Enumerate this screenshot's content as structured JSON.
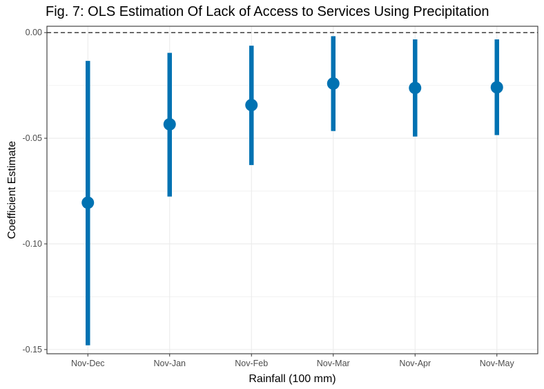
{
  "chart_data": {
    "type": "scatter",
    "title": "Fig. 7: OLS Estimation Of Lack of Access to Services Using Precipitation",
    "xlabel": "Rainfall (100 mm)",
    "ylabel": "Coefficient Estimate",
    "categories": [
      "Nov-Dec",
      "Nov-Jan",
      "Nov-Feb",
      "Nov-Mar",
      "Nov-Apr",
      "Nov-May"
    ],
    "series": [
      {
        "estimate": [
          -0.0805,
          -0.0434,
          -0.0343,
          -0.0241,
          -0.0262,
          -0.0259
        ],
        "ci_low": [
          -0.148,
          -0.0776,
          -0.0627,
          -0.0466,
          -0.0492,
          -0.0485
        ],
        "ci_high": [
          -0.0134,
          -0.0096,
          -0.0062,
          -0.0017,
          -0.0032,
          -0.0032
        ]
      }
    ],
    "yticks": [
      0.0,
      -0.05,
      -0.1,
      -0.15
    ],
    "ytick_labels": [
      "0.00",
      "-0.05",
      "-0.10",
      "-0.15"
    ],
    "ylim": [
      -0.152,
      0.003
    ],
    "reference_line": 0,
    "grid": true,
    "colors": {
      "marker": "#0072b2",
      "grid": "#ebebeb",
      "border": "#333333"
    }
  }
}
